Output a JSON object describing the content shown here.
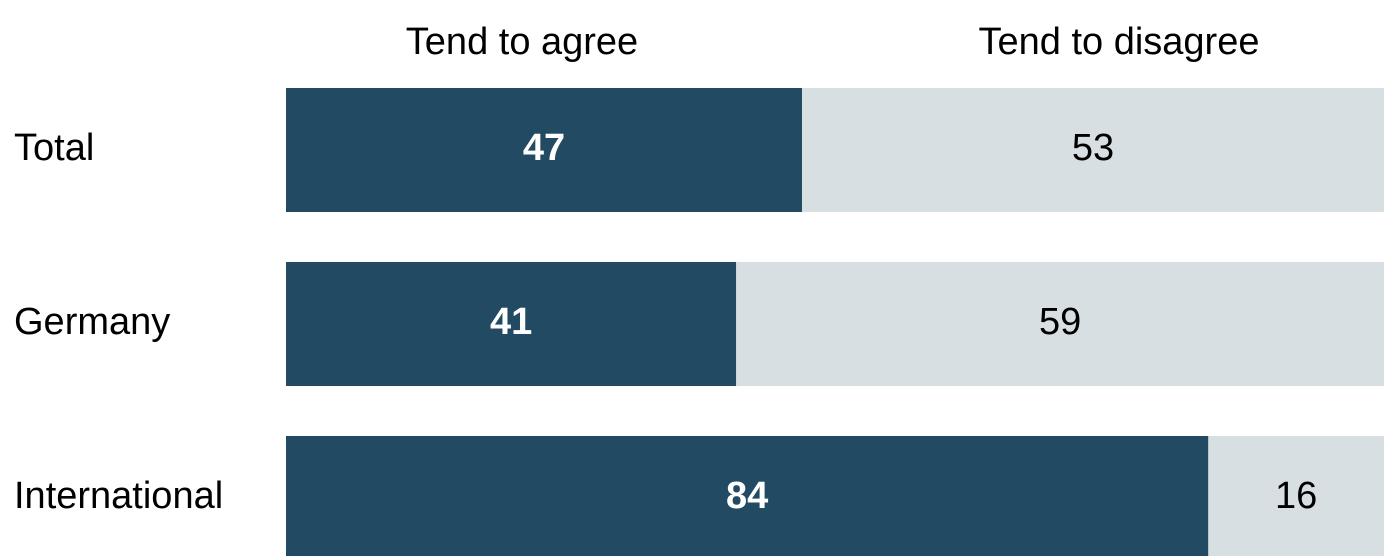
{
  "chart_data": {
    "type": "bar",
    "orientation": "horizontal",
    "stacked": true,
    "categories": [
      "Total",
      "Germany",
      "International"
    ],
    "series": [
      {
        "name": "Tend to agree",
        "values": [
          47,
          41,
          84
        ],
        "color": "#224a63"
      },
      {
        "name": "Tend to disagree",
        "values": [
          53,
          59,
          16
        ],
        "color": "#d8dfe3"
      }
    ],
    "xlim": [
      0,
      100
    ],
    "grid": false,
    "legend_position": "top"
  }
}
